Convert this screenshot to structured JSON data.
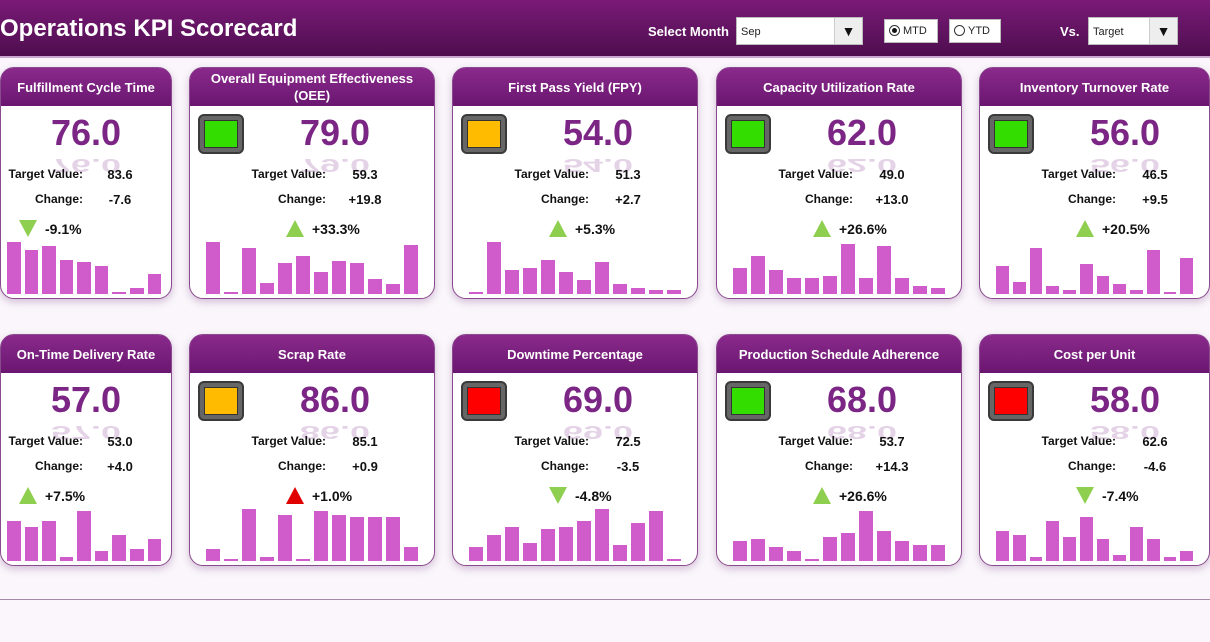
{
  "header": {
    "title": "Operations KPI Scorecard",
    "select_month_label": "Select Month",
    "month": "Sep",
    "mtd": "MTD",
    "ytd": "YTD",
    "mode_selected": "MTD",
    "vs_label": "Vs.",
    "vs_value": "Target"
  },
  "labels": {
    "target": "Target Value:",
    "change": "Change:"
  },
  "colors": {
    "good": "#8fcf4f",
    "bad": "#e00000",
    "bar": "#d05ccc",
    "green": "#33dd00",
    "amber": "#ffbb00",
    "red": "#ff0000"
  },
  "cards": [
    {
      "title": "Fulfillment Cycle Time",
      "value": "76.0",
      "target": "83.6",
      "change": "-7.6",
      "pct": "-9.1%",
      "arrow": "down",
      "arrow_color": "good",
      "lamp": null,
      "bars": [
        52,
        44,
        48,
        34,
        32,
        28,
        2,
        6,
        20
      ]
    },
    {
      "title": "Overall Equipment Effectiveness (OEE)",
      "value": "79.0",
      "target": "59.3",
      "change": "+19.8",
      "pct": "+33.3%",
      "arrow": "up",
      "arrow_color": "good",
      "lamp": "green",
      "bars": [
        52,
        2,
        46,
        11,
        31,
        38,
        22,
        33,
        31,
        15,
        10,
        49
      ]
    },
    {
      "title": "First Pass Yield (FPY)",
      "value": "54.0",
      "target": "51.3",
      "change": "+2.7",
      "pct": "+5.3%",
      "arrow": "up",
      "arrow_color": "good",
      "lamp": "amber",
      "bars": [
        2,
        52,
        24,
        26,
        34,
        22,
        14,
        32,
        10,
        6,
        4,
        4
      ]
    },
    {
      "title": "Capacity Utilization Rate",
      "value": "62.0",
      "target": "49.0",
      "change": "+13.0",
      "pct": "+26.6%",
      "arrow": "up",
      "arrow_color": "good",
      "lamp": "green",
      "bars": [
        26,
        38,
        24,
        16,
        16,
        18,
        50,
        16,
        48,
        16,
        8,
        6
      ]
    },
    {
      "title": "Inventory Turnover Rate",
      "value": "56.0",
      "target": "46.5",
      "change": "+9.5",
      "pct": "+20.5%",
      "arrow": "up",
      "arrow_color": "good",
      "lamp": "green",
      "bars": [
        28,
        12,
        46,
        8,
        4,
        30,
        18,
        10,
        4,
        44,
        2,
        36
      ]
    },
    {
      "title": "On-Time Delivery Rate",
      "value": "57.0",
      "target": "53.0",
      "change": "+4.0",
      "pct": "+7.5%",
      "arrow": "up",
      "arrow_color": "good",
      "lamp": null,
      "bars": [
        40,
        34,
        40,
        4,
        50,
        10,
        26,
        12,
        22
      ]
    },
    {
      "title": "Scrap Rate",
      "value": "86.0",
      "target": "85.1",
      "change": "+0.9",
      "pct": "+1.0%",
      "arrow": "up",
      "arrow_color": "bad",
      "lamp": "amber",
      "bars": [
        12,
        2,
        52,
        4,
        46,
        2,
        50,
        46,
        44,
        44,
        44,
        14
      ]
    },
    {
      "title": "Downtime Percentage",
      "value": "69.0",
      "target": "72.5",
      "change": "-3.5",
      "pct": "-4.8%",
      "arrow": "down",
      "arrow_color": "good",
      "lamp": "red",
      "bars": [
        14,
        26,
        34,
        18,
        32,
        34,
        40,
        52,
        16,
        38,
        50,
        2
      ]
    },
    {
      "title": "Production Schedule Adherence",
      "value": "68.0",
      "target": "53.7",
      "change": "+14.3",
      "pct": "+26.6%",
      "arrow": "up",
      "arrow_color": "good",
      "lamp": "green",
      "bars": [
        20,
        22,
        14,
        10,
        2,
        24,
        28,
        50,
        30,
        20,
        16,
        16
      ]
    },
    {
      "title": "Cost per Unit",
      "value": "58.0",
      "target": "62.6",
      "change": "-4.6",
      "pct": "-7.4%",
      "arrow": "down",
      "arrow_color": "good",
      "lamp": "red",
      "bars": [
        30,
        26,
        4,
        40,
        24,
        44,
        22,
        6,
        34,
        22,
        4,
        10
      ]
    }
  ]
}
